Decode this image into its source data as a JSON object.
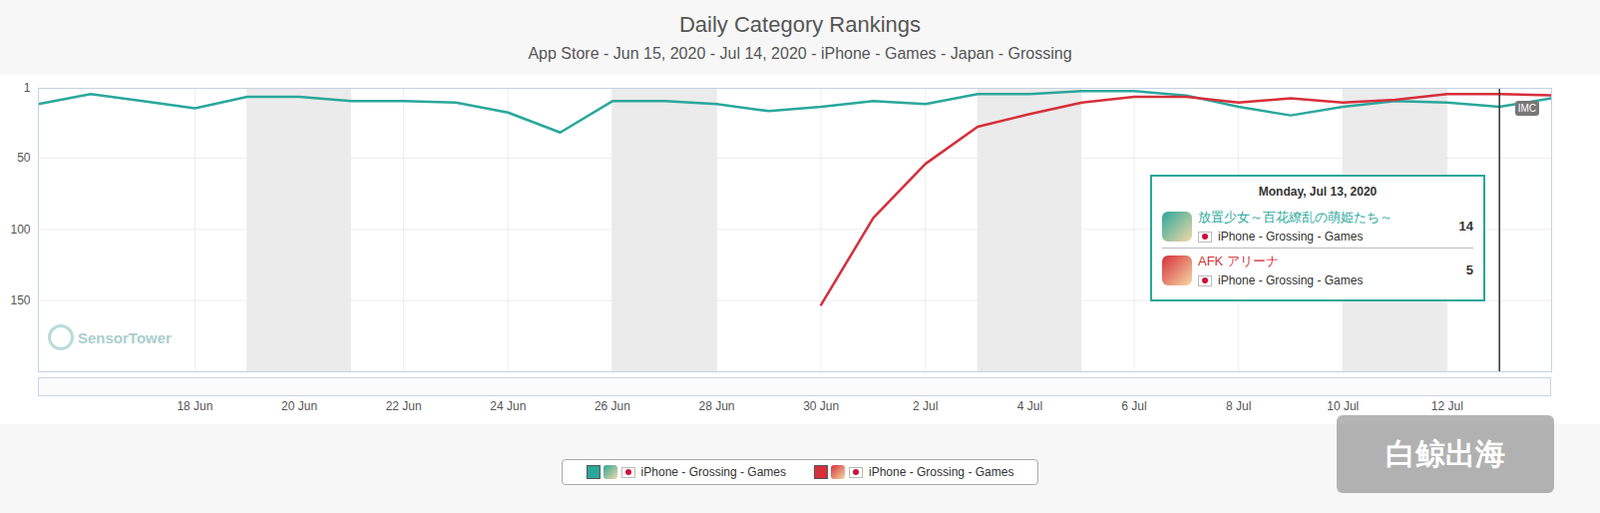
{
  "chart_data": {
    "type": "line",
    "title": "Daily Category Rankings",
    "subtitle": "App Store - Jun 15, 2020 - Jul 14, 2020 - iPhone - Games - Japan - Grossing",
    "x": [
      "2020-06-15",
      "2020-06-16",
      "2020-06-17",
      "2020-06-18",
      "2020-06-19",
      "2020-06-20",
      "2020-06-21",
      "2020-06-22",
      "2020-06-23",
      "2020-06-24",
      "2020-06-25",
      "2020-06-26",
      "2020-06-27",
      "2020-06-28",
      "2020-06-29",
      "2020-06-30",
      "2020-07-01",
      "2020-07-02",
      "2020-07-03",
      "2020-07-04",
      "2020-07-05",
      "2020-07-06",
      "2020-07-07",
      "2020-07-08",
      "2020-07-09",
      "2020-07-10",
      "2020-07-11",
      "2020-07-12",
      "2020-07-13",
      "2020-07-14"
    ],
    "series": [
      {
        "name": "放置少女～百花繚乱の萌姫たち～",
        "legend_label": "iPhone - Grossing - Games",
        "color": "#2aa79b",
        "values": [
          12,
          5,
          10,
          15,
          7,
          7,
          10,
          10,
          11,
          18,
          32,
          10,
          10,
          12,
          17,
          14,
          10,
          12,
          5,
          5,
          3,
          3,
          6,
          14,
          20,
          14,
          10,
          11,
          14,
          8
        ]
      },
      {
        "name": "AFK アリーナ",
        "legend_label": "iPhone - Grossing - Games",
        "color": "#d62f3a",
        "values": [
          null,
          null,
          null,
          null,
          null,
          null,
          null,
          null,
          null,
          null,
          null,
          null,
          null,
          null,
          null,
          153,
          92,
          54,
          28,
          19,
          11,
          7,
          7,
          11,
          8,
          11,
          9,
          5,
          5,
          6
        ]
      }
    ],
    "xlim": [
      "2020-06-15",
      "2020-07-14"
    ],
    "xticks": [
      {
        "value": "2020-06-18",
        "label": "18 Jun"
      },
      {
        "value": "2020-06-20",
        "label": "20 Jun"
      },
      {
        "value": "2020-06-22",
        "label": "22 Jun"
      },
      {
        "value": "2020-06-24",
        "label": "24 Jun"
      },
      {
        "value": "2020-06-26",
        "label": "26 Jun"
      },
      {
        "value": "2020-06-28",
        "label": "28 Jun"
      },
      {
        "value": "2020-06-30",
        "label": "30 Jun"
      },
      {
        "value": "2020-07-02",
        "label": "2 Jul"
      },
      {
        "value": "2020-07-04",
        "label": "4 Jul"
      },
      {
        "value": "2020-07-06",
        "label": "6 Jul"
      },
      {
        "value": "2020-07-08",
        "label": "8 Jul"
      },
      {
        "value": "2020-07-10",
        "label": "10 Jul"
      },
      {
        "value": "2020-07-12",
        "label": "12 Jul"
      }
    ],
    "ylim": [
      1,
      200
    ],
    "yticks": [
      1,
      50,
      100,
      150
    ],
    "grid": true,
    "legend": "bottom",
    "tooltip": {
      "x": "2020-07-13",
      "title": "Monday, Jul 13, 2020",
      "line": "iPhone - Grossing - Games"
    },
    "annotations": [
      {
        "x": "2020-07-13",
        "text": "IMC"
      }
    ],
    "watermarks": [
      "SensorTower",
      "白鲸出海"
    ]
  }
}
